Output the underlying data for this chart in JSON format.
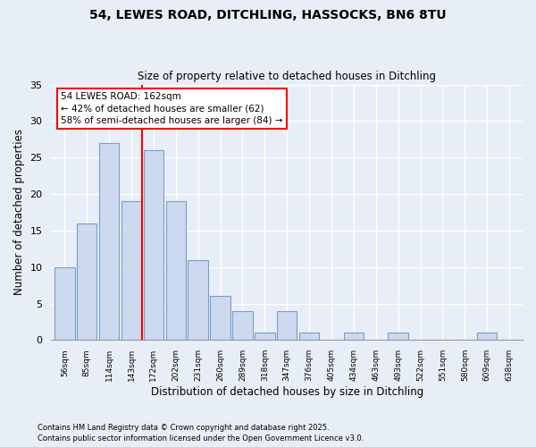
{
  "title1": "54, LEWES ROAD, DITCHLING, HASSOCKS, BN6 8TU",
  "title2": "Size of property relative to detached houses in Ditchling",
  "xlabel": "Distribution of detached houses by size in Ditchling",
  "ylabel": "Number of detached properties",
  "bar_color": "#ccd9ee",
  "bar_edge_color": "#7a9ec8",
  "background_color": "#e8eef8",
  "grid_color": "#ffffff",
  "categories": [
    "56sqm",
    "85sqm",
    "114sqm",
    "143sqm",
    "172sqm",
    "202sqm",
    "231sqm",
    "260sqm",
    "289sqm",
    "318sqm",
    "347sqm",
    "376sqm",
    "405sqm",
    "434sqm",
    "463sqm",
    "493sqm",
    "522sqm",
    "551sqm",
    "580sqm",
    "609sqm",
    "638sqm"
  ],
  "values": [
    10,
    16,
    27,
    19,
    26,
    19,
    11,
    6,
    4,
    1,
    4,
    1,
    0,
    1,
    0,
    1,
    0,
    0,
    0,
    1,
    0
  ],
  "property_line_x": 3.5,
  "property_line_label": "54 LEWES ROAD: 162sqm",
  "annotation_smaller": "← 42% of detached houses are smaller (62)",
  "annotation_larger": "58% of semi-detached houses are larger (84) →",
  "ylim": [
    0,
    35
  ],
  "yticks": [
    0,
    5,
    10,
    15,
    20,
    25,
    30,
    35
  ],
  "footnote1": "Contains HM Land Registry data © Crown copyright and database right 2025.",
  "footnote2": "Contains public sector information licensed under the Open Government Licence v3.0."
}
